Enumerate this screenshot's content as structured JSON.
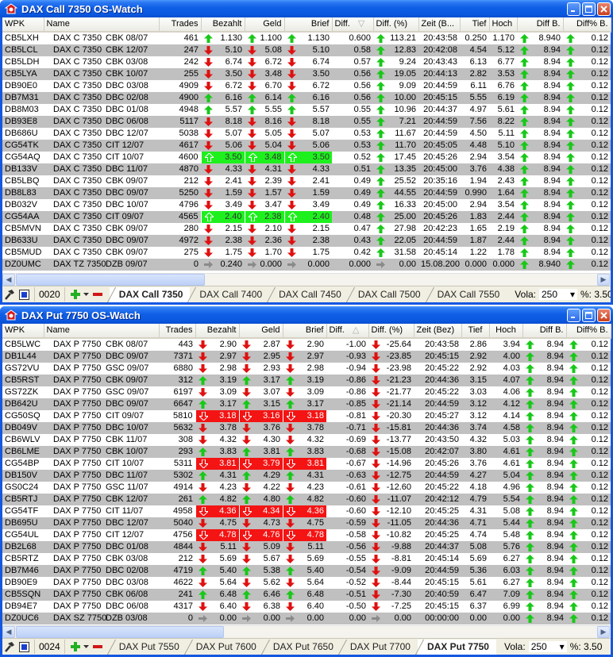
{
  "colors": {
    "up": "#18c818",
    "down": "#e01010",
    "flat": "#808080",
    "highlight_up": "#1ef01e",
    "highlight_down": "#f41414",
    "title_bar": "#0b58e0"
  },
  "windows": [
    {
      "title": "DAX Call 7350 OS-Watch",
      "columns": [
        "WPK",
        "Name",
        "Trades",
        "Bezahlt",
        "Geld",
        "Brief",
        "Diff.",
        "Diff. (%)",
        "Zeit (B...",
        "Tief",
        "Hoch",
        "Diff B.",
        "Diff% B."
      ],
      "sort_column": "Diff.",
      "sort_indicator": "descending",
      "rows": [
        [
          "CB5LXH",
          "DAX C 7350",
          "CBK 08/07",
          "461",
          "1.130",
          "1.100",
          "1.130",
          "0.600",
          "113.21",
          "20:43:58",
          "0.250",
          "1.170",
          "8.940",
          "0.12",
          "up",
          "up",
          false
        ],
        [
          "CB5LCL",
          "DAX C 7350",
          "CBK 12/07",
          "247",
          "5.10",
          "5.08",
          "5.10",
          "0.58",
          "12.83",
          "20:42:08",
          "4.54",
          "5.12",
          "8.94",
          "0.12",
          "down",
          "up",
          false
        ],
        [
          "CB5LDH",
          "DAX C 7350",
          "CBK 03/08",
          "242",
          "6.74",
          "6.72",
          "6.74",
          "0.57",
          "9.24",
          "20:43:43",
          "6.13",
          "6.77",
          "8.94",
          "0.12",
          "down",
          "up",
          false
        ],
        [
          "CB5LYA",
          "DAX C 7350",
          "CBK 10/07",
          "255",
          "3.50",
          "3.48",
          "3.50",
          "0.56",
          "19.05",
          "20:44:13",
          "2.82",
          "3.53",
          "8.94",
          "0.12",
          "down",
          "up",
          false
        ],
        [
          "DB90E0",
          "DAX C 7350",
          "DBC 03/08",
          "4909",
          "6.72",
          "6.70",
          "6.72",
          "0.56",
          "9.09",
          "20:44:59",
          "6.11",
          "6.76",
          "8.94",
          "0.12",
          "down",
          "up",
          false
        ],
        [
          "DB7M31",
          "DAX C 7350",
          "DBC 02/08",
          "4900",
          "6.16",
          "6.14",
          "6.16",
          "0.56",
          "10.00",
          "20:45:15",
          "5.55",
          "6.19",
          "8.94",
          "0.12",
          "up",
          "up",
          false
        ],
        [
          "DB8M03",
          "DAX C 7350",
          "DBC 01/08",
          "4948",
          "5.57",
          "5.55",
          "5.57",
          "0.55",
          "10.96",
          "20:44:37",
          "4.97",
          "5.61",
          "8.94",
          "0.12",
          "up",
          "up",
          false
        ],
        [
          "DB93E8",
          "DAX C 7350",
          "DBC 06/08",
          "5117",
          "8.18",
          "8.16",
          "8.18",
          "0.55",
          "7.21",
          "20:44:59",
          "7.56",
          "8.22",
          "8.94",
          "0.12",
          "down",
          "up",
          false
        ],
        [
          "DB686U",
          "DAX C 7350",
          "DBC 12/07",
          "5038",
          "5.07",
          "5.05",
          "5.07",
          "0.53",
          "11.67",
          "20:44:59",
          "4.50",
          "5.11",
          "8.94",
          "0.12",
          "down",
          "up",
          false
        ],
        [
          "CG54TK",
          "DAX C 7350",
          "CIT 12/07",
          "4617",
          "5.06",
          "5.04",
          "5.06",
          "0.53",
          "11.70",
          "20:45:05",
          "4.48",
          "5.10",
          "8.94",
          "0.12",
          "down",
          "up",
          false
        ],
        [
          "CG54AQ",
          "DAX C 7350",
          "CIT 10/07",
          "4600",
          "3.50",
          "3.48",
          "3.50",
          "0.52",
          "17.45",
          "20:45:26",
          "2.94",
          "3.54",
          "8.94",
          "0.12",
          "up",
          "up",
          true
        ],
        [
          "DB133V",
          "DAX C 7350",
          "DBC 11/07",
          "4870",
          "4.33",
          "4.31",
          "4.33",
          "0.51",
          "13.35",
          "20:45:00",
          "3.76",
          "4.38",
          "8.94",
          "0.12",
          "down",
          "up",
          false
        ],
        [
          "CB5LBQ",
          "DAX C 7350",
          "CBK 09/07",
          "212",
          "2.41",
          "2.39",
          "2.41",
          "0.49",
          "25.52",
          "20:35:16",
          "1.94",
          "2.43",
          "8.94",
          "0.12",
          "down",
          "up",
          false
        ],
        [
          "DB8L83",
          "DAX C 7350",
          "DBC 09/07",
          "5250",
          "1.59",
          "1.57",
          "1.59",
          "0.49",
          "44.55",
          "20:44:59",
          "0.990",
          "1.64",
          "8.94",
          "0.12",
          "down",
          "up",
          false
        ],
        [
          "DB032V",
          "DAX C 7350",
          "DBC 10/07",
          "4796",
          "3.49",
          "3.47",
          "3.49",
          "0.49",
          "16.33",
          "20:45:00",
          "2.94",
          "3.54",
          "8.94",
          "0.12",
          "down",
          "up",
          false
        ],
        [
          "CG54AA",
          "DAX C 7350",
          "CIT 09/07",
          "4565",
          "2.40",
          "2.38",
          "2.40",
          "0.48",
          "25.00",
          "20:45:26",
          "1.83",
          "2.44",
          "8.94",
          "0.12",
          "up",
          "up",
          true
        ],
        [
          "CB5MVN",
          "DAX C 7350",
          "CBK 09/07",
          "280",
          "2.15",
          "2.10",
          "2.15",
          "0.47",
          "27.98",
          "20:42:23",
          "1.65",
          "2.19",
          "8.94",
          "0.12",
          "down",
          "up",
          false
        ],
        [
          "DB633U",
          "DAX C 7350",
          "DBC 09/07",
          "4972",
          "2.38",
          "2.36",
          "2.38",
          "0.43",
          "22.05",
          "20:44:59",
          "1.87",
          "2.44",
          "8.94",
          "0.12",
          "down",
          "up",
          false
        ],
        [
          "CB5MUD",
          "DAX C 7350",
          "CBK 09/07",
          "275",
          "1.75",
          "1.70",
          "1.75",
          "0.42",
          "31.58",
          "20:45:14",
          "1.22",
          "1.78",
          "8.94",
          "0.12",
          "down",
          "up",
          false
        ],
        [
          "DZ0UMC",
          "DAX TZ 7350",
          "DZB 09/07",
          "0",
          "0.240",
          "0.000",
          "0.000",
          "0.000",
          "0.00",
          "15.08.200",
          "0.000",
          "0.000",
          "8.940",
          "0.12",
          "flat",
          "flat",
          false
        ]
      ],
      "toolbar": {
        "counter": "0020",
        "tabs": [
          "DAX Call 7350",
          "DAX Call 7400",
          "DAX Call 7450",
          "DAX Call 7500",
          "DAX Call 7550"
        ],
        "active_tab": 0,
        "vola_label": "Vola:",
        "vola_value": "250",
        "pct_label": "%: 3.50"
      }
    },
    {
      "title": "DAX Put 7750 OS-Watch",
      "columns": [
        "WPK",
        "Name",
        "Trades",
        "Bezahlt",
        "Geld",
        "Brief",
        "Diff.",
        "Diff. (%)",
        "Zeit (Bez)",
        "Tief",
        "Hoch",
        "Diff B.",
        "Diff% B."
      ],
      "sort_column": "Diff.",
      "sort_indicator": "ascending",
      "rows": [
        [
          "CB5LWC",
          "DAX P 7750",
          "CBK 08/07",
          "443",
          "2.90",
          "2.87",
          "2.90",
          "-1.00",
          "-25.64",
          "20:43:58",
          "2.86",
          "3.94",
          "8.94",
          "0.12",
          "down",
          "down",
          false
        ],
        [
          "DB1L44",
          "DAX P 7750",
          "DBC 09/07",
          "7371",
          "2.97",
          "2.95",
          "2.97",
          "-0.93",
          "-23.85",
          "20:45:15",
          "2.92",
          "4.00",
          "8.94",
          "0.12",
          "down",
          "down",
          false
        ],
        [
          "GS72VU",
          "DAX P 7750",
          "GSC 09/07",
          "6880",
          "2.98",
          "2.93",
          "2.98",
          "-0.94",
          "-23.98",
          "20:45:22",
          "2.92",
          "4.03",
          "8.94",
          "0.12",
          "down",
          "down",
          false
        ],
        [
          "CB5RST",
          "DAX P 7750",
          "CBK 09/07",
          "312",
          "3.19",
          "3.17",
          "3.19",
          "-0.86",
          "-21.23",
          "20:44:36",
          "3.15",
          "4.07",
          "8.94",
          "0.12",
          "up",
          "down",
          false
        ],
        [
          "GS72ZK",
          "DAX P 7750",
          "GSC 09/07",
          "6197",
          "3.09",
          "3.07",
          "3.09",
          "-0.86",
          "-21.77",
          "20:45:22",
          "3.03",
          "4.06",
          "8.94",
          "0.12",
          "down",
          "down",
          false
        ],
        [
          "DB642U",
          "DAX P 7750",
          "DBC 09/07",
          "6647",
          "3.17",
          "3.15",
          "3.17",
          "-0.85",
          "-21.14",
          "20:44:59",
          "3.12",
          "4.12",
          "8.94",
          "0.12",
          "up",
          "down",
          false
        ],
        [
          "CG50SQ",
          "DAX P 7750",
          "CIT 09/07",
          "5810",
          "3.18",
          "3.16",
          "3.18",
          "-0.81",
          "-20.30",
          "20:45:27",
          "3.12",
          "4.14",
          "8.94",
          "0.12",
          "down",
          "down",
          true
        ],
        [
          "DB049V",
          "DAX P 7750",
          "DBC 10/07",
          "5632",
          "3.78",
          "3.76",
          "3.78",
          "-0.71",
          "-15.81",
          "20:44:36",
          "3.74",
          "4.58",
          "8.94",
          "0.12",
          "down",
          "down",
          false
        ],
        [
          "CB6WLV",
          "DAX P 7750",
          "CBK 11/07",
          "308",
          "4.32",
          "4.30",
          "4.32",
          "-0.69",
          "-13.77",
          "20:43:50",
          "4.32",
          "5.03",
          "8.94",
          "0.12",
          "down",
          "down",
          false
        ],
        [
          "CB6LME",
          "DAX P 7750",
          "CBK 10/07",
          "293",
          "3.83",
          "3.81",
          "3.83",
          "-0.68",
          "-15.08",
          "20:42:07",
          "3.80",
          "4.61",
          "8.94",
          "0.12",
          "up",
          "down",
          false
        ],
        [
          "CG54BP",
          "DAX P 7750",
          "CIT 10/07",
          "5311",
          "3.81",
          "3.79",
          "3.81",
          "-0.67",
          "-14.96",
          "20:45:26",
          "3.76",
          "4.61",
          "8.94",
          "0.12",
          "down",
          "down",
          true
        ],
        [
          "DB150V",
          "DAX P 7750",
          "DBC 11/07",
          "5302",
          "4.31",
          "4.29",
          "4.31",
          "-0.63",
          "-12.75",
          "20:44:59",
          "4.27",
          "5.04",
          "8.94",
          "0.12",
          "up",
          "down",
          false
        ],
        [
          "GS0C24",
          "DAX P 7750",
          "GSC 11/07",
          "4914",
          "4.23",
          "4.22",
          "4.23",
          "-0.61",
          "-12.60",
          "20:45:22",
          "4.18",
          "4.96",
          "8.94",
          "0.12",
          "down",
          "down",
          false
        ],
        [
          "CB5RTJ",
          "DAX P 7750",
          "CBK 12/07",
          "261",
          "4.82",
          "4.80",
          "4.82",
          "-0.60",
          "-11.07",
          "20:42:12",
          "4.79",
          "5.54",
          "8.94",
          "0.12",
          "up",
          "down",
          false
        ],
        [
          "CG54TF",
          "DAX P 7750",
          "CIT 11/07",
          "4958",
          "4.36",
          "4.34",
          "4.36",
          "-0.60",
          "-12.10",
          "20:45:25",
          "4.31",
          "5.08",
          "8.94",
          "0.12",
          "down",
          "down",
          true
        ],
        [
          "DB695U",
          "DAX P 7750",
          "DBC 12/07",
          "5040",
          "4.75",
          "4.73",
          "4.75",
          "-0.59",
          "-11.05",
          "20:44:36",
          "4.71",
          "5.44",
          "8.94",
          "0.12",
          "down",
          "down",
          false
        ],
        [
          "CG54UL",
          "DAX P 7750",
          "CIT 12/07",
          "4756",
          "4.78",
          "4.76",
          "4.78",
          "-0.58",
          "-10.82",
          "20:45:25",
          "4.74",
          "5.48",
          "8.94",
          "0.12",
          "down",
          "down",
          true
        ],
        [
          "DB2L68",
          "DAX P 7750",
          "DBC 01/08",
          "4844",
          "5.11",
          "5.09",
          "5.11",
          "-0.56",
          "-9.88",
          "20:44:37",
          "5.08",
          "5.76",
          "8.94",
          "0.12",
          "down",
          "down",
          false
        ],
        [
          "CB5RTZ",
          "DAX P 7750",
          "CBK 03/08",
          "212",
          "5.69",
          "5.67",
          "5.69",
          "-0.55",
          "-8.81",
          "20:45:14",
          "5.69",
          "6.27",
          "8.94",
          "0.12",
          "down",
          "down",
          false
        ],
        [
          "DB7M46",
          "DAX P 7750",
          "DBC 02/08",
          "4719",
          "5.40",
          "5.38",
          "5.40",
          "-0.54",
          "-9.09",
          "20:44:59",
          "5.36",
          "6.03",
          "8.94",
          "0.12",
          "up",
          "down",
          false
        ],
        [
          "DB90E9",
          "DAX P 7750",
          "DBC 03/08",
          "4622",
          "5.64",
          "5.62",
          "5.64",
          "-0.52",
          "-8.44",
          "20:45:15",
          "5.61",
          "6.27",
          "8.94",
          "0.12",
          "down",
          "down",
          false
        ],
        [
          "CB5SQN",
          "DAX P 7750",
          "CBK 06/08",
          "241",
          "6.48",
          "6.46",
          "6.48",
          "-0.51",
          "-7.30",
          "20:40:59",
          "6.47",
          "7.09",
          "8.94",
          "0.12",
          "up",
          "down",
          false
        ],
        [
          "DB94E7",
          "DAX P 7750",
          "DBC 06/08",
          "4317",
          "6.40",
          "6.38",
          "6.40",
          "-0.50",
          "-7.25",
          "20:45:15",
          "6.37",
          "6.99",
          "8.94",
          "0.12",
          "down",
          "down",
          false
        ],
        [
          "DZ0UC6",
          "DAX SZ 7750",
          "DZB 03/08",
          "0",
          "0.00",
          "0.00",
          "0.00",
          "0.00",
          "0.00",
          "00:00:00",
          "0.00",
          "0.00",
          "8.94",
          "0.12",
          "flat",
          "flat",
          false
        ]
      ],
      "toolbar": {
        "counter": "0024",
        "tabs": [
          "DAX Put 7550",
          "DAX Put 7600",
          "DAX Put 7650",
          "DAX Put 7700",
          "DAX Put 7750"
        ],
        "active_tab": 4,
        "vola_label": "Vola:",
        "vola_value": "250",
        "pct_label": "%: 3.50"
      }
    }
  ]
}
